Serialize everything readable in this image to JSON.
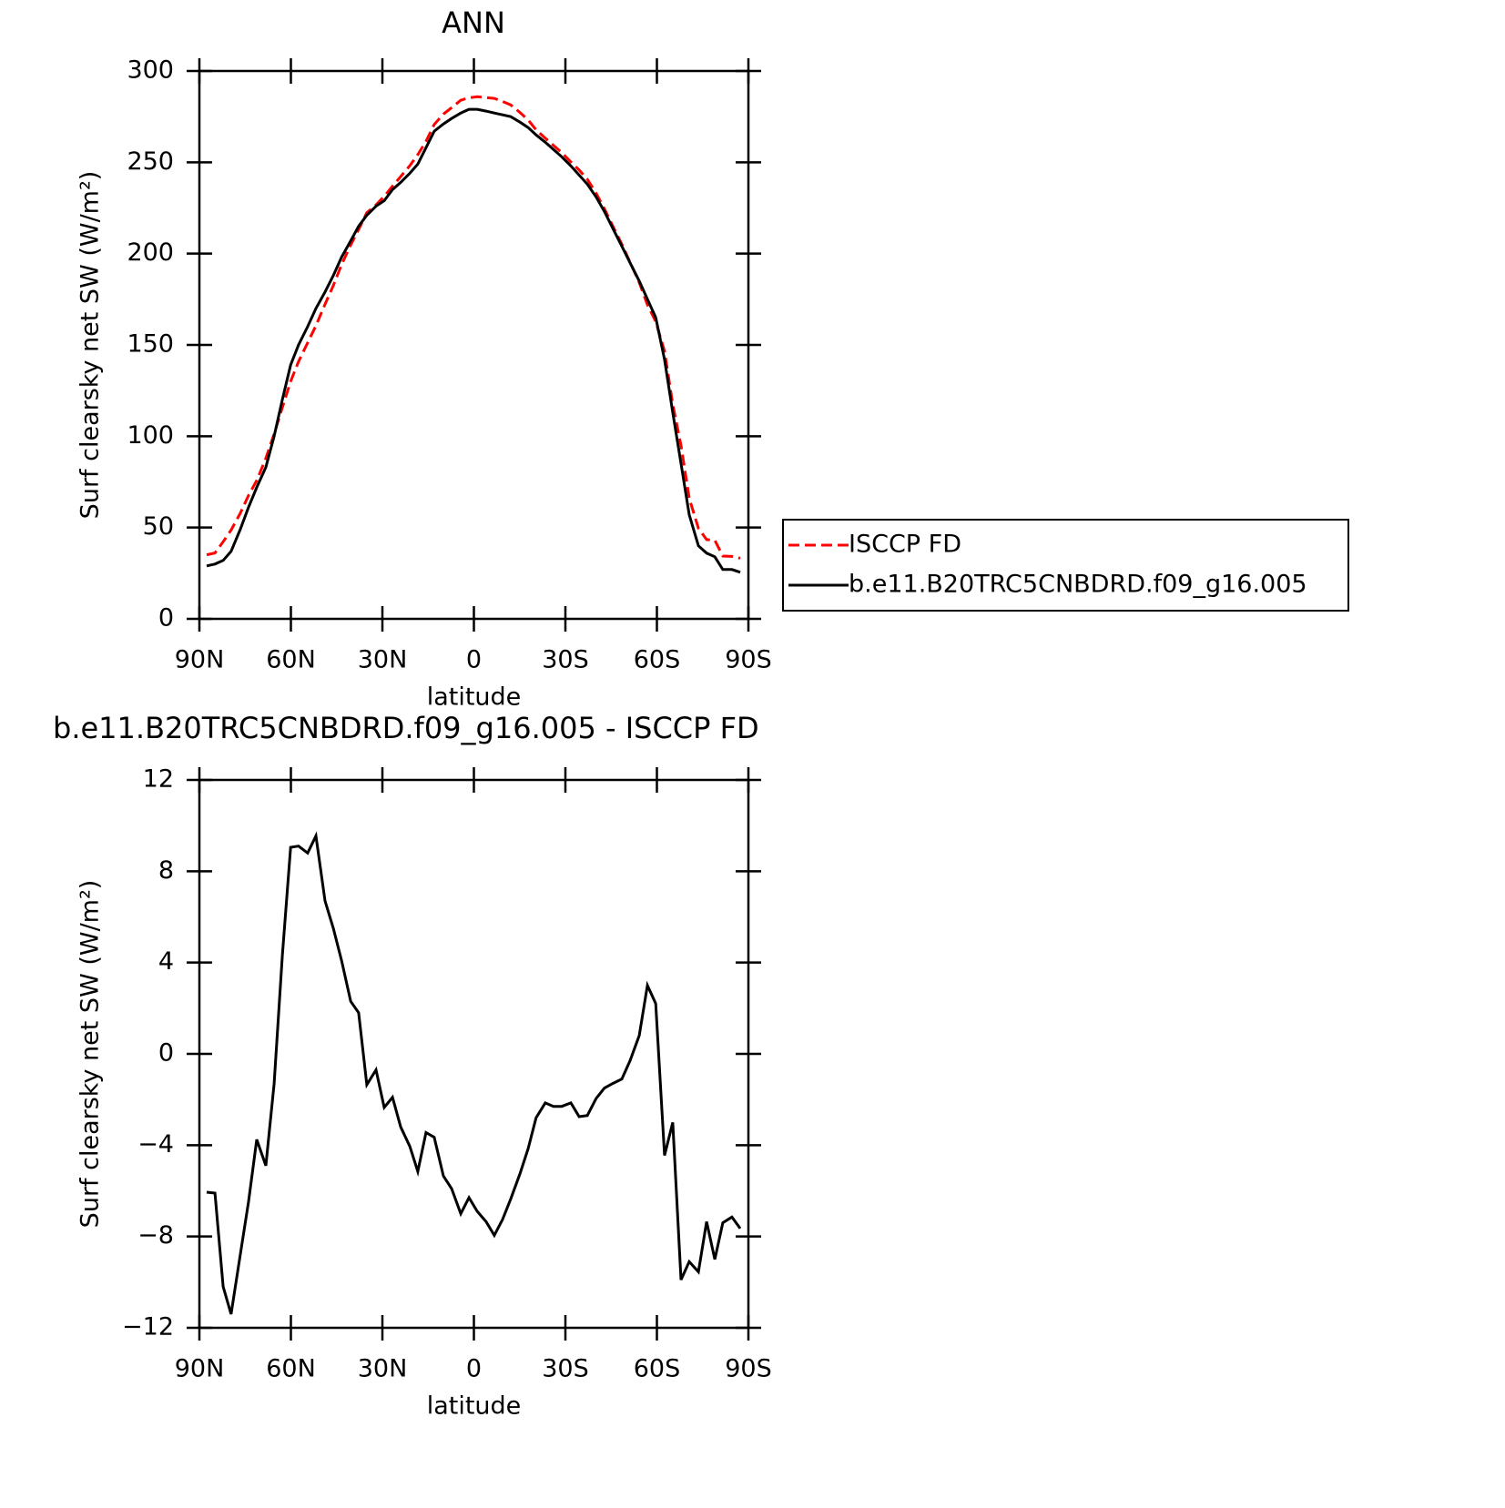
{
  "chart_data": [
    {
      "type": "line",
      "title": "ANN",
      "xlabel": "latitude",
      "ylabel": "Surf clearsky net SW (W/m²)",
      "x": [
        87.6,
        84.9,
        82.2,
        79.6,
        76.6,
        73.9,
        71.2,
        68.2,
        65.5,
        62.8,
        60.1,
        57.5,
        54.5,
        51.8,
        48.8,
        46.1,
        43.4,
        40.4,
        37.8,
        35.1,
        32.1,
        29.4,
        26.7,
        24.0,
        21.0,
        18.4,
        15.7,
        13.0,
        10.0,
        7.3,
        4.3,
        1.6,
        -1.1,
        -4.0,
        -6.7,
        -9.4,
        -12.1,
        -15.1,
        -17.8,
        -20.4,
        -23.4,
        -26.1,
        -28.8,
        -31.8,
        -34.5,
        -37.2,
        -40.1,
        -42.8,
        -45.5,
        -48.5,
        -51.2,
        -54.2,
        -56.9,
        -59.6,
        -62.5,
        -65.2,
        -67.9,
        -70.6,
        -73.6,
        -76.3,
        -79.0,
        -81.6,
        -84.6,
        -87.3
      ],
      "series": [
        {
          "name": "ISCCP FD",
          "color": "#ff0000",
          "linestyle": "dashed",
          "values": [
            35.1,
            36.1,
            42.2,
            48.6,
            57.8,
            67.5,
            75.8,
            87.9,
            101.3,
            115.7,
            130,
            140.9,
            151.2,
            160.5,
            172.3,
            182.5,
            193.9,
            204.7,
            213.2,
            222.4,
            226.7,
            231.4,
            236.9,
            242.2,
            248.1,
            254.2,
            261.5,
            270.7,
            276.4,
            279.9,
            284,
            285.3,
            285.9,
            285.4,
            285,
            283.3,
            281.4,
            277.3,
            273.2,
            267.8,
            263.2,
            259.3,
            255.3,
            250.2,
            245.8,
            240.7,
            233,
            224.5,
            215.3,
            205.1,
            195.3,
            184.2,
            172,
            162.8,
            146.5,
            117.5,
            94.9,
            66.1,
            49.6,
            43.4,
            43,
            34.4,
            34.2,
            33.2
          ]
        },
        {
          "name": "b.e11.B20TRC5CNBDRD.f09_g16.005",
          "color": "#000000",
          "linestyle": "solid",
          "values": [
            29,
            30,
            32,
            37,
            49,
            61,
            72,
            83,
            100,
            120,
            139,
            150,
            160,
            170,
            179,
            188,
            198,
            207,
            215,
            221,
            226,
            229,
            235,
            239,
            244,
            249,
            258,
            267,
            271,
            274,
            277,
            279,
            279,
            278,
            277,
            276,
            275,
            272,
            269,
            265,
            261,
            257,
            253,
            248,
            243,
            238,
            231,
            223,
            214,
            204,
            195,
            185,
            175,
            165,
            142,
            113,
            85,
            57,
            40,
            36,
            34,
            27,
            27,
            25.5
          ]
        }
      ],
      "xlim": [
        90,
        -90
      ],
      "xticks": [
        {
          "value": 90,
          "label": "90N"
        },
        {
          "value": 60,
          "label": "60N"
        },
        {
          "value": 30,
          "label": "30N"
        },
        0,
        {
          "value": -30,
          "label": "30S"
        },
        {
          "value": -60,
          "label": "60S"
        },
        {
          "value": -90,
          "label": "90S"
        }
      ],
      "ylim": [
        0,
        300
      ],
      "yticks": [
        0,
        50,
        100,
        150,
        200,
        250,
        300
      ],
      "legend": "right"
    },
    {
      "type": "line",
      "title": "b.e11.B20TRC5CNBDRD.f09_g16.005 - ISCCP FD",
      "xlabel": "latitude",
      "ylabel": "Surf clearsky net SW (W/m²)",
      "x": [
        87.6,
        84.9,
        82.2,
        79.6,
        76.6,
        73.9,
        71.2,
        68.2,
        65.5,
        62.8,
        60.1,
        57.5,
        54.5,
        51.8,
        48.8,
        46.1,
        43.4,
        40.4,
        37.8,
        35.1,
        32.1,
        29.4,
        26.7,
        24.0,
        21.0,
        18.4,
        15.7,
        13.0,
        10.0,
        7.3,
        4.3,
        1.6,
        -1.1,
        -4.0,
        -6.7,
        -9.4,
        -12.1,
        -15.1,
        -17.8,
        -20.4,
        -23.4,
        -26.1,
        -28.8,
        -31.8,
        -34.5,
        -37.2,
        -40.1,
        -42.8,
        -45.5,
        -48.5,
        -51.2,
        -54.2,
        -56.9,
        -59.6,
        -62.5,
        -65.2,
        -67.9,
        -70.6,
        -73.6,
        -76.3,
        -79.0,
        -81.6,
        -84.6,
        -87.3
      ],
      "series": [
        {
          "color": "#000000",
          "linestyle": "solid",
          "values": [
            -6.06,
            -6.1,
            -10.2,
            -11.4,
            -8.8,
            -6.5,
            -3.75,
            -4.9,
            -1.3,
            4.3,
            9.05,
            9.1,
            8.8,
            9.55,
            6.7,
            5.5,
            4.1,
            2.3,
            1.8,
            -1.35,
            -0.7,
            -2.35,
            -1.9,
            -3.2,
            -4.05,
            -5.15,
            -3.45,
            -3.65,
            -5.35,
            -5.9,
            -7.0,
            -6.3,
            -6.9,
            -7.35,
            -7.95,
            -7.25,
            -6.35,
            -5.25,
            -4.15,
            -2.8,
            -2.15,
            -2.3,
            -2.3,
            -2.15,
            -2.75,
            -2.7,
            -1.95,
            -1.5,
            -1.3,
            -1.1,
            -0.3,
            0.8,
            3.0,
            2.2,
            -4.45,
            -3.0,
            -9.9,
            -9.1,
            -9.55,
            -7.35,
            -9.0,
            -7.4,
            -7.15,
            -7.65
          ]
        }
      ],
      "xlim": [
        90,
        -90
      ],
      "xticks": [
        {
          "value": 90,
          "label": "90N"
        },
        {
          "value": 60,
          "label": "60N"
        },
        {
          "value": 30,
          "label": "30N"
        },
        0,
        {
          "value": -30,
          "label": "30S"
        },
        {
          "value": -60,
          "label": "60S"
        },
        {
          "value": -90,
          "label": "90S"
        }
      ],
      "ylim": [
        -12,
        12
      ],
      "yticks": [
        {
          "value": -12,
          "label": "−12"
        },
        {
          "value": -8,
          "label": "−8"
        },
        {
          "value": -4,
          "label": "−4"
        },
        0,
        4,
        8,
        12
      ]
    }
  ]
}
